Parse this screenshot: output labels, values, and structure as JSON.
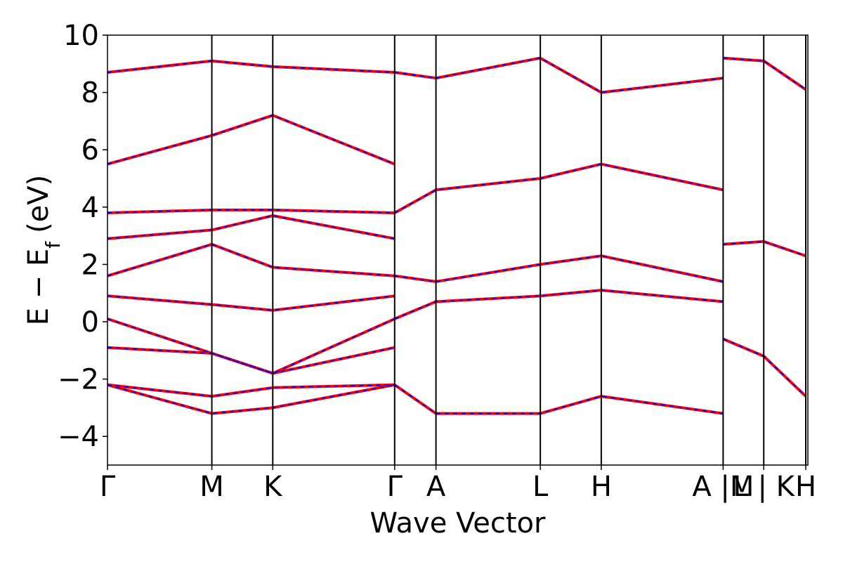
{
  "chart_data": {
    "type": "line",
    "title": "",
    "xlabel": "Wave Vector",
    "ylabel": "E − E",
    "ylabel_subscript": "f",
    "ylabel_unit": "(eV)",
    "ylim": [
      -5,
      10
    ],
    "yticks": [
      10,
      8,
      6,
      4,
      2,
      0,
      -2,
      -4
    ],
    "ytick_labels": [
      "10",
      "8",
      "6",
      "4",
      "2",
      "0",
      "−2",
      "−4"
    ],
    "grid": false,
    "legend": "none",
    "x_ticks": [
      {
        "label": "Γ",
        "x": 0.0
      },
      {
        "label": "M",
        "x": 0.149
      },
      {
        "label": "K",
        "x": 0.236
      },
      {
        "label": "Γ",
        "x": 0.41
      },
      {
        "label": "A",
        "x": 0.469
      },
      {
        "label": "L",
        "x": 0.618
      },
      {
        "label": "H",
        "x": 0.705
      },
      {
        "label": "A |M",
        "x": 0.879
      },
      {
        "label": "L | K",
        "x": 0.937
      },
      {
        "label": "H",
        "x": 0.997
      }
    ],
    "x_divider_labels_note": "",
    "series": [
      {
        "color": "#ff0000",
        "style": "solid",
        "bands": [
          {
            "x": [
              0.0,
              0.149,
              0.236,
              0.41
            ],
            "y": [
              -2.2,
              -3.2,
              -3.0,
              -2.2
            ]
          },
          {
            "x": [
              0.0,
              0.149,
              0.236,
              0.41
            ],
            "y": [
              -2.2,
              -2.6,
              -2.3,
              -2.2
            ]
          },
          {
            "x": [
              0.0,
              0.149,
              0.236,
              0.41
            ],
            "y": [
              -0.9,
              -1.1,
              -1.8,
              -0.9
            ]
          },
          {
            "x": [
              0.0,
              0.149,
              0.236,
              0.41
            ],
            "y": [
              0.1,
              -1.1,
              -1.8,
              0.1
            ]
          },
          {
            "x": [
              0.0,
              0.149,
              0.236,
              0.41
            ],
            "y": [
              0.9,
              0.6,
              0.4,
              0.9
            ]
          },
          {
            "x": [
              0.0,
              0.149,
              0.236,
              0.41
            ],
            "y": [
              1.6,
              2.7,
              1.9,
              1.6
            ]
          },
          {
            "x": [
              0.0,
              0.149,
              0.236,
              0.41
            ],
            "y": [
              2.9,
              3.2,
              3.7,
              2.9
            ]
          },
          {
            "x": [
              0.0,
              0.149,
              0.236,
              0.41
            ],
            "y": [
              3.8,
              3.9,
              3.9,
              3.8
            ]
          },
          {
            "x": [
              0.0,
              0.149,
              0.236,
              0.41
            ],
            "y": [
              5.5,
              6.5,
              7.2,
              5.5
            ]
          },
          {
            "x": [
              0.0,
              0.149,
              0.236,
              0.41
            ],
            "y": [
              8.7,
              9.1,
              8.9,
              8.7
            ]
          },
          {
            "x": [
              0.41,
              0.469,
              0.618,
              0.705,
              0.879
            ],
            "y": [
              -2.2,
              -3.2,
              -3.2,
              -2.6,
              -3.2
            ]
          },
          {
            "x": [
              0.41,
              0.469,
              0.618,
              0.705,
              0.879
            ],
            "y": [
              0.1,
              0.7,
              0.9,
              1.1,
              0.7
            ]
          },
          {
            "x": [
              0.41,
              0.469,
              0.618,
              0.705,
              0.879
            ],
            "y": [
              1.6,
              1.4,
              2.0,
              2.3,
              1.4
            ]
          },
          {
            "x": [
              0.41,
              0.469,
              0.618,
              0.705,
              0.879
            ],
            "y": [
              3.8,
              4.6,
              5.0,
              5.5,
              4.6
            ]
          },
          {
            "x": [
              0.41,
              0.469,
              0.618,
              0.705,
              0.879
            ],
            "y": [
              8.7,
              8.5,
              9.2,
              8.0,
              8.5
            ]
          },
          {
            "x": [
              0.879,
              0.937,
              0.997
            ],
            "y": [
              -0.6,
              -1.2,
              -2.6
            ]
          },
          {
            "x": [
              0.879,
              0.937,
              0.997
            ],
            "y": [
              2.7,
              2.8,
              2.3
            ]
          },
          {
            "x": [
              0.879,
              0.937,
              0.997
            ],
            "y": [
              9.2,
              9.1,
              8.1
            ]
          }
        ]
      },
      {
        "color": "#0000ff",
        "style": "dashed",
        "bands": [
          {
            "x": [
              0.0,
              0.149,
              0.236,
              0.41
            ],
            "y": [
              -2.2,
              -3.2,
              -3.0,
              -2.2
            ]
          },
          {
            "x": [
              0.0,
              0.149,
              0.236,
              0.41
            ],
            "y": [
              -2.2,
              -2.6,
              -2.3,
              -2.2
            ]
          },
          {
            "x": [
              0.0,
              0.149,
              0.236,
              0.41
            ],
            "y": [
              -0.9,
              -1.1,
              -1.8,
              -0.9
            ]
          },
          {
            "x": [
              0.0,
              0.149,
              0.236,
              0.41
            ],
            "y": [
              0.1,
              -1.1,
              -1.8,
              0.1
            ]
          },
          {
            "x": [
              0.0,
              0.149,
              0.236,
              0.41
            ],
            "y": [
              0.9,
              0.6,
              0.4,
              0.9
            ]
          },
          {
            "x": [
              0.0,
              0.149,
              0.236,
              0.41
            ],
            "y": [
              1.6,
              2.7,
              1.9,
              1.6
            ]
          },
          {
            "x": [
              0.0,
              0.149,
              0.236,
              0.41
            ],
            "y": [
              2.9,
              3.2,
              3.7,
              2.9
            ]
          },
          {
            "x": [
              0.0,
              0.149,
              0.236,
              0.41
            ],
            "y": [
              3.8,
              3.9,
              3.9,
              3.8
            ]
          },
          {
            "x": [
              0.0,
              0.149,
              0.236,
              0.41
            ],
            "y": [
              5.5,
              6.5,
              7.2,
              5.5
            ]
          },
          {
            "x": [
              0.0,
              0.149,
              0.236,
              0.41
            ],
            "y": [
              8.7,
              9.1,
              8.9,
              8.7
            ]
          },
          {
            "x": [
              0.41,
              0.469,
              0.618,
              0.705,
              0.879
            ],
            "y": [
              -2.2,
              -3.2,
              -3.2,
              -2.6,
              -3.2
            ]
          },
          {
            "x": [
              0.41,
              0.469,
              0.618,
              0.705,
              0.879
            ],
            "y": [
              0.1,
              0.7,
              0.9,
              1.1,
              0.7
            ]
          },
          {
            "x": [
              0.41,
              0.469,
              0.618,
              0.705,
              0.879
            ],
            "y": [
              1.6,
              1.4,
              2.0,
              2.3,
              1.4
            ]
          },
          {
            "x": [
              0.41,
              0.469,
              0.618,
              0.705,
              0.879
            ],
            "y": [
              3.8,
              4.6,
              5.0,
              5.5,
              4.6
            ]
          },
          {
            "x": [
              0.41,
              0.469,
              0.618,
              0.705,
              0.879
            ],
            "y": [
              8.7,
              8.5,
              9.2,
              8.0,
              8.5
            ]
          },
          {
            "x": [
              0.879,
              0.937,
              0.997
            ],
            "y": [
              -0.6,
              -1.2,
              -2.6
            ]
          },
          {
            "x": [
              0.879,
              0.937,
              0.997
            ],
            "y": [
              2.7,
              2.8,
              2.3
            ]
          },
          {
            "x": [
              0.879,
              0.937,
              0.997
            ],
            "y": [
              9.2,
              9.1,
              8.1
            ]
          }
        ]
      }
    ]
  }
}
